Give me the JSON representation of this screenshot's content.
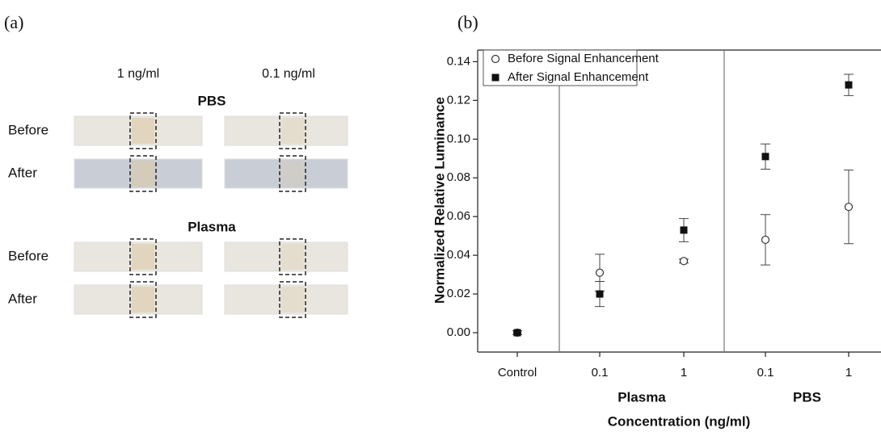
{
  "panel_a": {
    "label": "(a)",
    "columns": [
      "1 ng/ml",
      "0.1 ng/ml"
    ],
    "groups": [
      {
        "title": "PBS",
        "rows": [
          "Before",
          "After"
        ]
      },
      {
        "title": "Plasma",
        "rows": [
          "Before",
          "After"
        ]
      }
    ]
  },
  "chart_data": {
    "type": "scatter",
    "panel_label": "(b)",
    "y_label": "Normalized Relative Luminance",
    "x_label": "Concentration (ng/ml)",
    "categories": [
      "Control",
      "0.1",
      "1",
      "0.1",
      "1"
    ],
    "group_labels": [
      "Plasma",
      "PBS"
    ],
    "series": [
      {
        "name": "Before Signal Enhancement",
        "marker": "circle-open",
        "color": "#333333",
        "values": [
          0,
          0.031,
          0.037,
          0.048,
          0.065
        ],
        "errors": [
          0.001,
          0.0095,
          0.001,
          0.013,
          0.019
        ]
      },
      {
        "name": "After Signal Enhancement",
        "marker": "square",
        "color": "#111111",
        "values": [
          0,
          0.02,
          0.053,
          0.091,
          0.128
        ],
        "errors": [
          0.001,
          0.0065,
          0.006,
          0.0065,
          0.0055
        ]
      }
    ],
    "ylim": [
      -0.01,
      0.146
    ],
    "yticks": [
      {
        "value": 0,
        "label": "0.00"
      },
      {
        "value": 0.02,
        "label": "0.02"
      },
      {
        "value": 0.04,
        "label": "0.04"
      },
      {
        "value": 0.06,
        "label": "0.06"
      },
      {
        "value": 0.08,
        "label": "0.08"
      },
      {
        "value": 0.1,
        "label": "0.10"
      },
      {
        "value": 0.12,
        "label": "0.12"
      },
      {
        "value": 0.14,
        "label": "0.14"
      }
    ],
    "legend": "upper left"
  }
}
